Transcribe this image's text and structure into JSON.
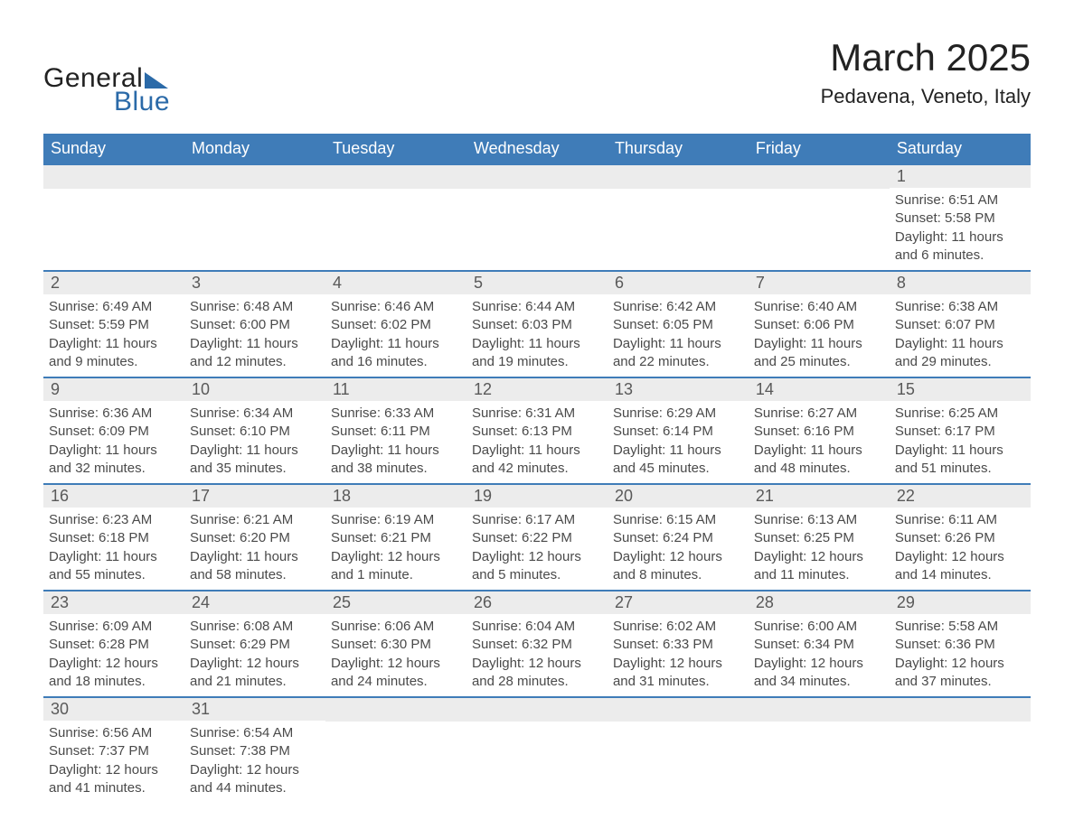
{
  "logo": {
    "word1": "General",
    "word2": "Blue",
    "accent_color": "#2b6aa8"
  },
  "title": "March 2025",
  "location": "Pedavena, Veneto, Italy",
  "header_bg": "#3f7cb8",
  "header_fg": "#ffffff",
  "daynum_bg": "#ececec",
  "daynum_fg": "#595959",
  "body_fg": "#4a4a4a",
  "row_border": "#3f7cb8",
  "fontsize_title": 42,
  "fontsize_location": 22,
  "fontsize_header": 18,
  "fontsize_daynum": 18,
  "fontsize_body": 15,
  "day_labels": [
    "Sunday",
    "Monday",
    "Tuesday",
    "Wednesday",
    "Thursday",
    "Friday",
    "Saturday"
  ],
  "weeks": [
    [
      null,
      null,
      null,
      null,
      null,
      null,
      {
        "n": "1",
        "sr": "Sunrise: 6:51 AM",
        "ss": "Sunset: 5:58 PM",
        "d1": "Daylight: 11 hours",
        "d2": "and 6 minutes."
      }
    ],
    [
      {
        "n": "2",
        "sr": "Sunrise: 6:49 AM",
        "ss": "Sunset: 5:59 PM",
        "d1": "Daylight: 11 hours",
        "d2": "and 9 minutes."
      },
      {
        "n": "3",
        "sr": "Sunrise: 6:48 AM",
        "ss": "Sunset: 6:00 PM",
        "d1": "Daylight: 11 hours",
        "d2": "and 12 minutes."
      },
      {
        "n": "4",
        "sr": "Sunrise: 6:46 AM",
        "ss": "Sunset: 6:02 PM",
        "d1": "Daylight: 11 hours",
        "d2": "and 16 minutes."
      },
      {
        "n": "5",
        "sr": "Sunrise: 6:44 AM",
        "ss": "Sunset: 6:03 PM",
        "d1": "Daylight: 11 hours",
        "d2": "and 19 minutes."
      },
      {
        "n": "6",
        "sr": "Sunrise: 6:42 AM",
        "ss": "Sunset: 6:05 PM",
        "d1": "Daylight: 11 hours",
        "d2": "and 22 minutes."
      },
      {
        "n": "7",
        "sr": "Sunrise: 6:40 AM",
        "ss": "Sunset: 6:06 PM",
        "d1": "Daylight: 11 hours",
        "d2": "and 25 minutes."
      },
      {
        "n": "8",
        "sr": "Sunrise: 6:38 AM",
        "ss": "Sunset: 6:07 PM",
        "d1": "Daylight: 11 hours",
        "d2": "and 29 minutes."
      }
    ],
    [
      {
        "n": "9",
        "sr": "Sunrise: 6:36 AM",
        "ss": "Sunset: 6:09 PM",
        "d1": "Daylight: 11 hours",
        "d2": "and 32 minutes."
      },
      {
        "n": "10",
        "sr": "Sunrise: 6:34 AM",
        "ss": "Sunset: 6:10 PM",
        "d1": "Daylight: 11 hours",
        "d2": "and 35 minutes."
      },
      {
        "n": "11",
        "sr": "Sunrise: 6:33 AM",
        "ss": "Sunset: 6:11 PM",
        "d1": "Daylight: 11 hours",
        "d2": "and 38 minutes."
      },
      {
        "n": "12",
        "sr": "Sunrise: 6:31 AM",
        "ss": "Sunset: 6:13 PM",
        "d1": "Daylight: 11 hours",
        "d2": "and 42 minutes."
      },
      {
        "n": "13",
        "sr": "Sunrise: 6:29 AM",
        "ss": "Sunset: 6:14 PM",
        "d1": "Daylight: 11 hours",
        "d2": "and 45 minutes."
      },
      {
        "n": "14",
        "sr": "Sunrise: 6:27 AM",
        "ss": "Sunset: 6:16 PM",
        "d1": "Daylight: 11 hours",
        "d2": "and 48 minutes."
      },
      {
        "n": "15",
        "sr": "Sunrise: 6:25 AM",
        "ss": "Sunset: 6:17 PM",
        "d1": "Daylight: 11 hours",
        "d2": "and 51 minutes."
      }
    ],
    [
      {
        "n": "16",
        "sr": "Sunrise: 6:23 AM",
        "ss": "Sunset: 6:18 PM",
        "d1": "Daylight: 11 hours",
        "d2": "and 55 minutes."
      },
      {
        "n": "17",
        "sr": "Sunrise: 6:21 AM",
        "ss": "Sunset: 6:20 PM",
        "d1": "Daylight: 11 hours",
        "d2": "and 58 minutes."
      },
      {
        "n": "18",
        "sr": "Sunrise: 6:19 AM",
        "ss": "Sunset: 6:21 PM",
        "d1": "Daylight: 12 hours",
        "d2": "and 1 minute."
      },
      {
        "n": "19",
        "sr": "Sunrise: 6:17 AM",
        "ss": "Sunset: 6:22 PM",
        "d1": "Daylight: 12 hours",
        "d2": "and 5 minutes."
      },
      {
        "n": "20",
        "sr": "Sunrise: 6:15 AM",
        "ss": "Sunset: 6:24 PM",
        "d1": "Daylight: 12 hours",
        "d2": "and 8 minutes."
      },
      {
        "n": "21",
        "sr": "Sunrise: 6:13 AM",
        "ss": "Sunset: 6:25 PM",
        "d1": "Daylight: 12 hours",
        "d2": "and 11 minutes."
      },
      {
        "n": "22",
        "sr": "Sunrise: 6:11 AM",
        "ss": "Sunset: 6:26 PM",
        "d1": "Daylight: 12 hours",
        "d2": "and 14 minutes."
      }
    ],
    [
      {
        "n": "23",
        "sr": "Sunrise: 6:09 AM",
        "ss": "Sunset: 6:28 PM",
        "d1": "Daylight: 12 hours",
        "d2": "and 18 minutes."
      },
      {
        "n": "24",
        "sr": "Sunrise: 6:08 AM",
        "ss": "Sunset: 6:29 PM",
        "d1": "Daylight: 12 hours",
        "d2": "and 21 minutes."
      },
      {
        "n": "25",
        "sr": "Sunrise: 6:06 AM",
        "ss": "Sunset: 6:30 PM",
        "d1": "Daylight: 12 hours",
        "d2": "and 24 minutes."
      },
      {
        "n": "26",
        "sr": "Sunrise: 6:04 AM",
        "ss": "Sunset: 6:32 PM",
        "d1": "Daylight: 12 hours",
        "d2": "and 28 minutes."
      },
      {
        "n": "27",
        "sr": "Sunrise: 6:02 AM",
        "ss": "Sunset: 6:33 PM",
        "d1": "Daylight: 12 hours",
        "d2": "and 31 minutes."
      },
      {
        "n": "28",
        "sr": "Sunrise: 6:00 AM",
        "ss": "Sunset: 6:34 PM",
        "d1": "Daylight: 12 hours",
        "d2": "and 34 minutes."
      },
      {
        "n": "29",
        "sr": "Sunrise: 5:58 AM",
        "ss": "Sunset: 6:36 PM",
        "d1": "Daylight: 12 hours",
        "d2": "and 37 minutes."
      }
    ],
    [
      {
        "n": "30",
        "sr": "Sunrise: 6:56 AM",
        "ss": "Sunset: 7:37 PM",
        "d1": "Daylight: 12 hours",
        "d2": "and 41 minutes."
      },
      {
        "n": "31",
        "sr": "Sunrise: 6:54 AM",
        "ss": "Sunset: 7:38 PM",
        "d1": "Daylight: 12 hours",
        "d2": "and 44 minutes."
      },
      null,
      null,
      null,
      null,
      null
    ]
  ]
}
